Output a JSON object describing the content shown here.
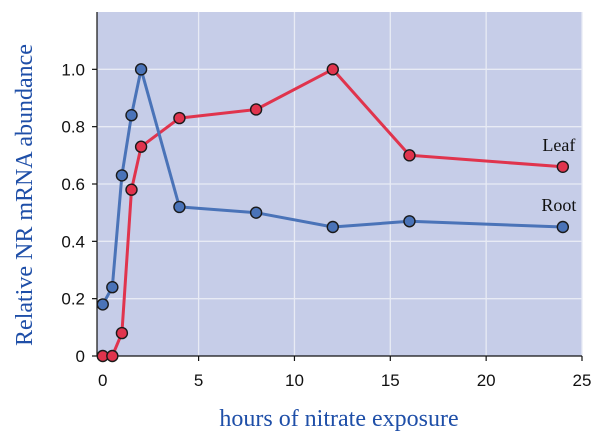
{
  "chart_data": {
    "type": "line",
    "xlabel": "hours of nitrate exposure",
    "ylabel": "Relative NR mRNA abundance",
    "xlim": [
      -0.3,
      25
    ],
    "ylim": [
      0,
      1.2
    ],
    "x_ticks": [
      0,
      5,
      10,
      15,
      20,
      25
    ],
    "y_ticks": [
      0,
      0.2,
      0.4,
      0.6,
      0.8,
      1.0
    ],
    "x_tick_labels": [
      "0",
      "5",
      "10",
      "15",
      "20",
      "25"
    ],
    "y_tick_labels": [
      "0",
      "0.2",
      "0.4",
      "0.6",
      "0.8",
      "1.0"
    ],
    "grid": true,
    "legend": "inline labels at the right end of each line",
    "series": [
      {
        "name": "Leaf",
        "color": "#e0344d",
        "points": [
          [
            0,
            0.0
          ],
          [
            0.5,
            0.0
          ],
          [
            1,
            0.08
          ],
          [
            1.5,
            0.58
          ],
          [
            2,
            0.73
          ],
          [
            4,
            0.83
          ],
          [
            8,
            0.86
          ],
          [
            12,
            1.0
          ],
          [
            16,
            0.7
          ],
          [
            24,
            0.66
          ]
        ]
      },
      {
        "name": "Root",
        "color": "#4a73b8",
        "points": [
          [
            0,
            0.18
          ],
          [
            0.5,
            0.24
          ],
          [
            1,
            0.63
          ],
          [
            1.5,
            0.84
          ],
          [
            2,
            1.0
          ],
          [
            4,
            0.52
          ],
          [
            8,
            0.5
          ],
          [
            12,
            0.45
          ],
          [
            16,
            0.47
          ],
          [
            24,
            0.45
          ]
        ]
      }
    ],
    "colors": {
      "plot_background": "#c6cde8",
      "grid": "#e8ebf5",
      "axis_title": "#1f4fa8"
    }
  }
}
